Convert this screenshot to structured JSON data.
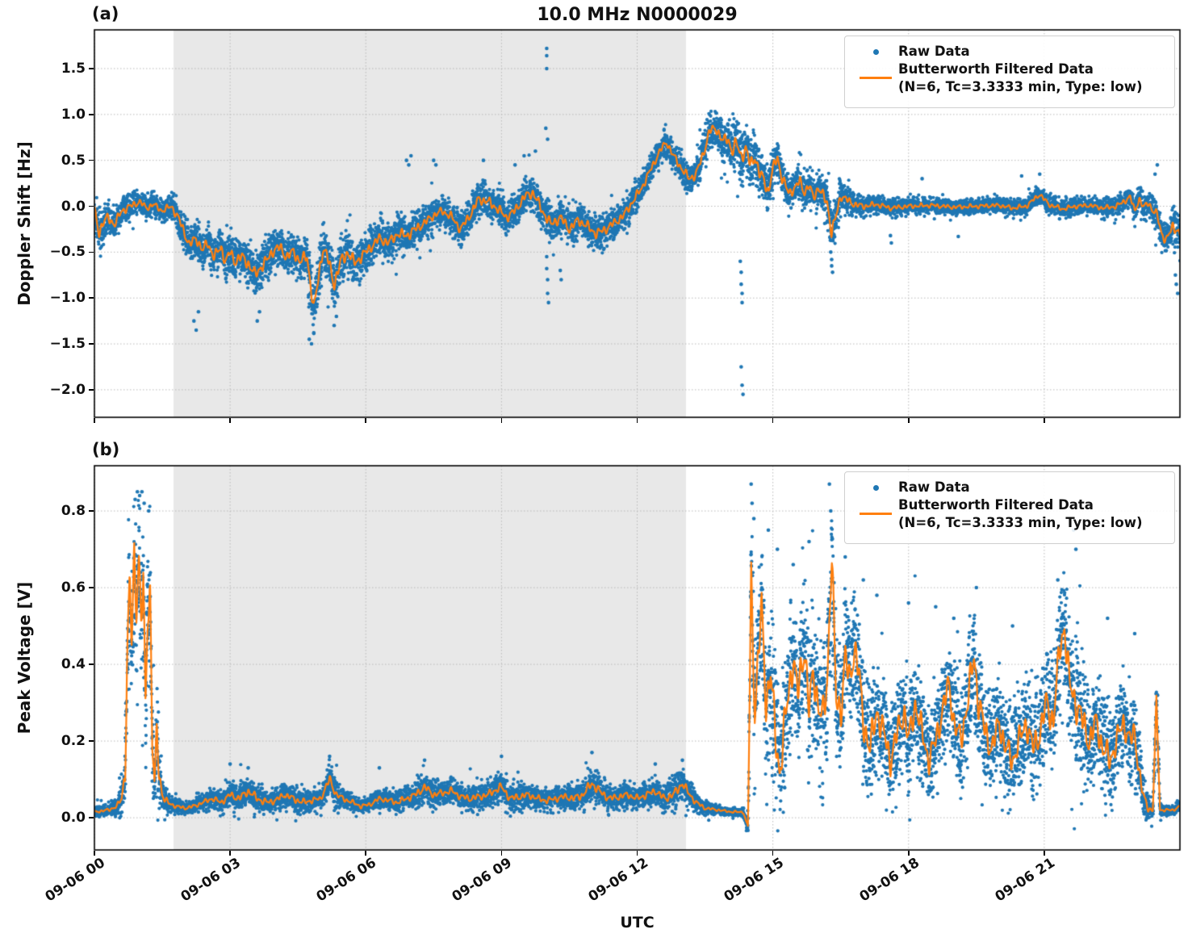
{
  "figure": {
    "title": "10.0 MHz N0000029",
    "panel_a_tag": "(a)",
    "panel_b_tag": "(b)",
    "xlabel": "UTC",
    "legend": {
      "raw_label": "Raw Data",
      "filtered_label": "Butterworth Filtered Data",
      "filtered_sublabel": "(N=6, Tc=3.3333 min, Type: low)"
    },
    "colors": {
      "raw": "#1f77b4",
      "filtered": "#ff7f0e",
      "shading": "#e8e8e8",
      "grid": "#b8b8b8",
      "text": "#111111"
    }
  },
  "chart_data": [
    {
      "panel": "a",
      "type": "scatter",
      "title": "10.0 MHz N0000029",
      "ylabel": "Doppler Shift [Hz]",
      "xlabel": "UTC",
      "ylim": [
        -2.3,
        1.922
      ],
      "x_hours_range": [
        0,
        24
      ],
      "x_date": "09-06",
      "xticks_hours": [
        0,
        3,
        6,
        9,
        12,
        15,
        18,
        21
      ],
      "xtick_labels": [
        "09-06 00",
        "09-06 03",
        "09-06 06",
        "09-06 09",
        "09-06 12",
        "09-06 15",
        "09-06 18",
        "09-06 21"
      ],
      "yticks": [
        1.5,
        1.0,
        0.5,
        0.0,
        -0.5,
        -1.0,
        -1.5,
        -2.0
      ],
      "ytick_labels": [
        "1.5",
        "1.0",
        "0.5",
        "0.0",
        "−0.5",
        "−1.0",
        "−1.5",
        "−2.0"
      ],
      "grid": true,
      "legend_entries": [
        "Raw Data",
        "Butterworth Filtered Data (N=6, Tc=3.3333 min, Type: low)"
      ],
      "legend_position": "upper right",
      "shaded_hours": [
        1.75,
        13.08
      ],
      "filtered_line": {
        "t": [
          0,
          0.1,
          0.2,
          0.3,
          0.45,
          0.6,
          0.8,
          1.0,
          1.15,
          1.3,
          1.5,
          1.7,
          1.85,
          2.0,
          2.1,
          2.25,
          2.4,
          2.5,
          2.65,
          2.8,
          2.9,
          3.0,
          3.1,
          3.25,
          3.4,
          3.55,
          3.65,
          3.8,
          3.95,
          4.1,
          4.25,
          4.4,
          4.55,
          4.7,
          4.85,
          4.95,
          5.05,
          5.15,
          5.3,
          5.45,
          5.6,
          5.75,
          5.9,
          6.1,
          6.3,
          6.5,
          6.7,
          6.9,
          7.1,
          7.3,
          7.5,
          7.7,
          7.9,
          8.1,
          8.3,
          8.5,
          8.7,
          8.9,
          9.1,
          9.3,
          9.5,
          9.7,
          9.9,
          10.1,
          10.3,
          10.5,
          10.7,
          10.9,
          11.1,
          11.3,
          11.5,
          11.7,
          11.9,
          12.1,
          12.3,
          12.5,
          12.65,
          12.8,
          13.0,
          13.15,
          13.3,
          13.45,
          13.6,
          13.75,
          13.9,
          14.0,
          14.1,
          14.2,
          14.3,
          14.4,
          14.5,
          14.6,
          14.7,
          14.8,
          14.9,
          15.0,
          15.1,
          15.2,
          15.35,
          15.5,
          15.6,
          15.7,
          15.8,
          15.9,
          16.0,
          16.1,
          16.2,
          16.3,
          16.4,
          16.5,
          16.6,
          16.8,
          17.0,
          17.3,
          17.6,
          18.0,
          18.5,
          19.0,
          19.5,
          20.0,
          20.3,
          20.6,
          20.9,
          21.1,
          21.4,
          21.7,
          22.0,
          22.3,
          22.6,
          22.9,
          23.0,
          23.1,
          23.2,
          23.3,
          23.4,
          23.5,
          23.6,
          23.7,
          23.85,
          24.0
        ],
        "y": [
          -0.05,
          -0.28,
          -0.18,
          -0.12,
          -0.2,
          -0.05,
          0.0,
          0.05,
          -0.02,
          0.02,
          -0.05,
          0.0,
          -0.12,
          -0.3,
          -0.42,
          -0.35,
          -0.48,
          -0.4,
          -0.55,
          -0.45,
          -0.6,
          -0.5,
          -0.6,
          -0.55,
          -0.62,
          -0.75,
          -0.68,
          -0.6,
          -0.48,
          -0.45,
          -0.55,
          -0.5,
          -0.6,
          -0.55,
          -1.12,
          -0.8,
          -0.45,
          -0.55,
          -0.85,
          -0.6,
          -0.5,
          -0.62,
          -0.55,
          -0.45,
          -0.35,
          -0.4,
          -0.3,
          -0.32,
          -0.25,
          -0.18,
          -0.1,
          -0.05,
          -0.12,
          -0.25,
          -0.1,
          0.08,
          0.05,
          -0.02,
          -0.12,
          -0.05,
          0.1,
          0.15,
          -0.05,
          -0.2,
          -0.12,
          -0.25,
          -0.15,
          -0.22,
          -0.3,
          -0.25,
          -0.18,
          -0.1,
          0.05,
          0.2,
          0.4,
          0.6,
          0.7,
          0.55,
          0.4,
          0.3,
          0.35,
          0.55,
          0.82,
          0.85,
          0.7,
          0.75,
          0.6,
          0.68,
          0.55,
          0.62,
          0.45,
          0.55,
          0.35,
          0.3,
          0.15,
          0.4,
          0.55,
          0.3,
          0.15,
          0.2,
          0.28,
          0.15,
          0.22,
          0.1,
          0.2,
          0.12,
          0.05,
          -0.3,
          -0.1,
          0.12,
          0.08,
          0.02,
          0.0,
          0.02,
          -0.02,
          0.0,
          0.01,
          -0.01,
          0.0,
          0.01,
          -0.02,
          0.0,
          0.13,
          0.02,
          -0.03,
          0.0,
          0.01,
          -0.02,
          0.0,
          0.1,
          -0.05,
          0.08,
          -0.02,
          0.05,
          -0.05,
          -0.1,
          -0.3,
          -0.38,
          -0.2,
          -0.32
        ]
      },
      "raw_band_halfwidth": {
        "t": [
          0,
          0.3,
          0.6,
          1.0,
          1.5,
          2.0,
          2.5,
          3.0,
          3.5,
          4.0,
          4.5,
          5.0,
          5.5,
          6.0,
          6.5,
          7.0,
          7.5,
          8.0,
          8.5,
          9.0,
          9.5,
          10.0,
          10.5,
          11.0,
          11.5,
          12.0,
          12.5,
          13.0,
          13.5,
          13.8,
          14.2,
          14.6,
          15.0,
          15.5,
          16.0,
          16.3,
          16.6,
          17.0,
          17.5,
          18.0,
          19.0,
          20.0,
          21.0,
          21.5,
          22.0,
          22.5,
          23.0,
          23.4,
          23.7,
          24.0
        ],
        "hw": [
          0.38,
          0.3,
          0.25,
          0.2,
          0.18,
          0.3,
          0.32,
          0.35,
          0.38,
          0.35,
          0.35,
          0.42,
          0.4,
          0.32,
          0.3,
          0.32,
          0.25,
          0.28,
          0.3,
          0.3,
          0.3,
          0.32,
          0.3,
          0.3,
          0.28,
          0.25,
          0.22,
          0.25,
          0.3,
          0.32,
          0.45,
          0.4,
          0.35,
          0.3,
          0.28,
          0.38,
          0.25,
          0.18,
          0.15,
          0.14,
          0.13,
          0.13,
          0.15,
          0.14,
          0.13,
          0.15,
          0.2,
          0.25,
          0.3,
          0.35
        ]
      },
      "raw_outliers": {
        "t": [
          10.0,
          10.0,
          10.0,
          9.98,
          10.02,
          10.0,
          10.0,
          10.02,
          10.02,
          10.04,
          10.3,
          10.32,
          2.2,
          2.25,
          2.3,
          3.6,
          3.65,
          4.75,
          4.8,
          4.85,
          5.3,
          5.35,
          6.9,
          6.95,
          7.0,
          7.5,
          7.55,
          8.6,
          9.3,
          9.5,
          9.75,
          14.28,
          14.3,
          14.3,
          14.32,
          14.32,
          14.3,
          14.32,
          14.34,
          16.28,
          16.3,
          16.3,
          16.32,
          17.6,
          17.62,
          18.3,
          19.1,
          20.5,
          20.9,
          23.45,
          23.5,
          23.9,
          23.92,
          23.95
        ],
        "y": [
          1.72,
          1.64,
          1.5,
          0.85,
          0.73,
          -0.55,
          -0.68,
          -0.8,
          -0.95,
          -1.05,
          -0.7,
          -0.8,
          -1.25,
          -1.35,
          -1.15,
          -1.25,
          -1.15,
          -1.45,
          -1.5,
          -1.38,
          -1.3,
          -1.2,
          0.5,
          0.45,
          0.55,
          0.5,
          0.45,
          0.5,
          0.45,
          0.55,
          0.6,
          -0.6,
          -0.72,
          -0.85,
          -0.95,
          -1.05,
          -1.75,
          -1.95,
          -2.05,
          -0.5,
          -0.58,
          -0.65,
          -0.72,
          -0.32,
          -0.4,
          0.3,
          -0.33,
          0.33,
          0.35,
          0.35,
          0.45,
          -0.75,
          -0.85,
          -0.95
        ]
      }
    },
    {
      "panel": "b",
      "type": "scatter",
      "ylabel": "Peak Voltage [V]",
      "xlabel": "UTC",
      "ylim": [
        -0.084,
        0.918
      ],
      "x_hours_range": [
        0,
        24
      ],
      "x_date": "09-06",
      "xticks_hours": [
        0,
        3,
        6,
        9,
        12,
        15,
        18,
        21
      ],
      "xtick_labels": [
        "09-06 00",
        "09-06 03",
        "09-06 06",
        "09-06 09",
        "09-06 12",
        "09-06 15",
        "09-06 18",
        "09-06 21"
      ],
      "yticks": [
        0.8,
        0.6,
        0.4,
        0.2,
        0.0
      ],
      "ytick_labels": [
        "0.8",
        "0.6",
        "0.4",
        "0.2",
        "0.0"
      ],
      "grid": true,
      "legend_entries": [
        "Raw Data",
        "Butterworth Filtered Data (N=6, Tc=3.3333 min, Type: low)"
      ],
      "legend_position": "upper right",
      "shaded_hours": [
        1.75,
        13.08
      ],
      "filtered_line": {
        "t": [
          0,
          0.3,
          0.5,
          0.6,
          0.68,
          0.72,
          0.78,
          0.82,
          0.88,
          0.93,
          0.98,
          1.03,
          1.08,
          1.13,
          1.18,
          1.23,
          1.28,
          1.33,
          1.38,
          1.43,
          1.5,
          1.6,
          1.8,
          2.0,
          2.2,
          2.4,
          2.6,
          2.8,
          3.0,
          3.2,
          3.4,
          3.6,
          3.8,
          4.0,
          4.2,
          4.4,
          4.6,
          4.8,
          5.0,
          5.2,
          5.35,
          5.5,
          5.7,
          5.9,
          6.1,
          6.3,
          6.5,
          6.7,
          6.9,
          7.1,
          7.3,
          7.5,
          7.7,
          7.9,
          8.1,
          8.3,
          8.5,
          8.7,
          8.9,
          9.0,
          9.2,
          9.4,
          9.6,
          9.8,
          10.0,
          10.2,
          10.4,
          10.6,
          10.8,
          11.0,
          11.2,
          11.4,
          11.6,
          11.8,
          12.0,
          12.2,
          12.4,
          12.6,
          12.8,
          13.0,
          13.1,
          13.3,
          13.5,
          13.8,
          14.1,
          14.35,
          14.45,
          14.52,
          14.6,
          14.68,
          14.75,
          14.85,
          14.95,
          15.05,
          15.15,
          15.3,
          15.45,
          15.55,
          15.7,
          15.8,
          15.9,
          16.0,
          16.1,
          16.2,
          16.3,
          16.4,
          16.5,
          16.6,
          16.7,
          16.8,
          16.9,
          17.0,
          17.15,
          17.3,
          17.45,
          17.6,
          17.75,
          17.9,
          18.0,
          18.15,
          18.3,
          18.45,
          18.6,
          18.75,
          18.9,
          19.0,
          19.15,
          19.3,
          19.45,
          19.55,
          19.7,
          19.85,
          20.0,
          20.15,
          20.3,
          20.45,
          20.6,
          20.75,
          20.9,
          21.05,
          21.2,
          21.35,
          21.45,
          21.55,
          21.7,
          21.85,
          22.0,
          22.15,
          22.3,
          22.45,
          22.6,
          22.75,
          22.9,
          23.0,
          23.1,
          23.2,
          23.3,
          23.4,
          23.48,
          23.56,
          23.7,
          23.85,
          24.0
        ],
        "y": [
          0.015,
          0.02,
          0.03,
          0.05,
          0.12,
          0.4,
          0.62,
          0.45,
          0.68,
          0.55,
          0.7,
          0.5,
          0.62,
          0.28,
          0.55,
          0.6,
          0.2,
          0.08,
          0.22,
          0.12,
          0.06,
          0.04,
          0.03,
          0.025,
          0.03,
          0.04,
          0.05,
          0.04,
          0.06,
          0.05,
          0.07,
          0.05,
          0.04,
          0.045,
          0.06,
          0.05,
          0.04,
          0.045,
          0.05,
          0.1,
          0.06,
          0.05,
          0.04,
          0.03,
          0.035,
          0.05,
          0.045,
          0.04,
          0.05,
          0.06,
          0.08,
          0.06,
          0.065,
          0.07,
          0.055,
          0.05,
          0.055,
          0.06,
          0.075,
          0.08,
          0.05,
          0.055,
          0.06,
          0.05,
          0.045,
          0.05,
          0.055,
          0.05,
          0.06,
          0.09,
          0.065,
          0.05,
          0.055,
          0.06,
          0.05,
          0.06,
          0.07,
          0.05,
          0.06,
          0.09,
          0.07,
          0.04,
          0.025,
          0.02,
          0.015,
          0.015,
          -0.03,
          0.63,
          0.28,
          0.42,
          0.55,
          0.3,
          0.38,
          0.22,
          0.12,
          0.28,
          0.42,
          0.32,
          0.45,
          0.28,
          0.38,
          0.3,
          0.25,
          0.35,
          0.7,
          0.3,
          0.28,
          0.42,
          0.35,
          0.45,
          0.38,
          0.25,
          0.18,
          0.28,
          0.22,
          0.15,
          0.22,
          0.28,
          0.2,
          0.3,
          0.22,
          0.15,
          0.2,
          0.28,
          0.35,
          0.25,
          0.2,
          0.3,
          0.42,
          0.3,
          0.22,
          0.18,
          0.25,
          0.18,
          0.15,
          0.2,
          0.25,
          0.18,
          0.22,
          0.3,
          0.25,
          0.45,
          0.5,
          0.35,
          0.3,
          0.25,
          0.2,
          0.25,
          0.18,
          0.15,
          0.2,
          0.25,
          0.2,
          0.22,
          0.12,
          0.05,
          0.025,
          0.02,
          0.3,
          0.02,
          0.02,
          0.02,
          0.03
        ]
      },
      "raw_band_halfwidth": {
        "t": [
          0,
          0.5,
          0.65,
          0.75,
          0.85,
          1.0,
          1.15,
          1.3,
          1.4,
          1.5,
          1.7,
          2.0,
          2.5,
          3.0,
          3.5,
          4.0,
          4.5,
          5.0,
          5.2,
          5.5,
          6.0,
          6.5,
          7.0,
          7.3,
          7.6,
          8.0,
          8.5,
          9.0,
          9.5,
          10.0,
          10.5,
          11.0,
          11.5,
          12.0,
          12.5,
          13.0,
          13.3,
          13.6,
          14.0,
          14.4,
          14.55,
          14.7,
          15.0,
          15.5,
          16.0,
          16.3,
          16.5,
          17.0,
          17.5,
          18.0,
          18.5,
          19.0,
          19.5,
          20.0,
          20.5,
          21.0,
          21.5,
          22.0,
          22.5,
          23.0,
          23.2,
          23.35,
          23.5,
          23.6,
          24.0
        ],
        "hw": [
          0.015,
          0.03,
          0.1,
          0.28,
          0.3,
          0.3,
          0.3,
          0.25,
          0.2,
          0.08,
          0.03,
          0.025,
          0.035,
          0.05,
          0.06,
          0.045,
          0.05,
          0.04,
          0.07,
          0.04,
          0.03,
          0.04,
          0.05,
          0.06,
          0.05,
          0.05,
          0.05,
          0.06,
          0.05,
          0.045,
          0.05,
          0.07,
          0.05,
          0.05,
          0.055,
          0.07,
          0.04,
          0.02,
          0.015,
          0.02,
          0.3,
          0.3,
          0.3,
          0.28,
          0.28,
          0.3,
          0.28,
          0.25,
          0.22,
          0.22,
          0.2,
          0.22,
          0.25,
          0.2,
          0.2,
          0.22,
          0.28,
          0.22,
          0.2,
          0.18,
          0.1,
          0.03,
          0.1,
          0.02,
          0.02
        ]
      },
      "raw_outliers": {
        "t": [
          0.9,
          0.95,
          1.0,
          1.05,
          1.1,
          1.2,
          3.0,
          3.4,
          5.2,
          6.3,
          7.3,
          9.0,
          11.0,
          12.4,
          13.0,
          14.52,
          14.54,
          14.58,
          14.9,
          15.1,
          15.45,
          15.8,
          16.25,
          16.28,
          16.6,
          17.0,
          17.3,
          18.0,
          18.6,
          19.0,
          19.5,
          20.3,
          21.3,
          21.65,
          21.7,
          22.4,
          23.0,
          23.5
        ],
        "y": [
          0.83,
          0.85,
          0.84,
          0.85,
          0.82,
          0.8,
          0.14,
          0.13,
          0.16,
          0.13,
          0.15,
          0.16,
          0.17,
          0.14,
          0.15,
          0.87,
          0.82,
          0.78,
          0.75,
          0.7,
          0.66,
          0.72,
          0.87,
          0.8,
          0.68,
          0.62,
          0.58,
          0.56,
          0.55,
          0.52,
          0.6,
          0.5,
          0.62,
          0.75,
          0.7,
          0.52,
          0.48,
          0.32
        ]
      }
    }
  ]
}
